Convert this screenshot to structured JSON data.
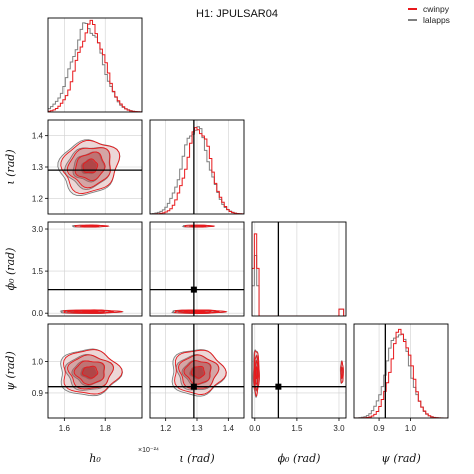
{
  "chart_data": {
    "type": "corner",
    "title": "H1: JPULSAR04",
    "series": [
      {
        "name": "cwinpy",
        "color": "#e8191c"
      },
      {
        "name": "lalapps",
        "color": "#7f7f7f"
      }
    ],
    "parameters": [
      {
        "key": "h0",
        "label": "h₀",
        "range": [
          1.52,
          1.98
        ],
        "ticks": [
          "1.6",
          "1.8"
        ],
        "exponent": "×10⁻²⁴",
        "truth": null,
        "mean": 1.72,
        "sd": 0.07
      },
      {
        "key": "iota",
        "label": "ι (rad)",
        "range": [
          1.15,
          1.45
        ],
        "ticks": [
          "1.2",
          "1.3",
          "1.4"
        ],
        "truth": 1.29,
        "mean": 1.3,
        "sd": 0.04
      },
      {
        "key": "phi0",
        "label": "ϕ₀ (rad)",
        "range": [
          -0.1,
          3.25
        ],
        "ticks": [
          "0.0",
          "1.5",
          "3.0"
        ],
        "truth": 0.84,
        "modes": [
          0.05,
          3.1
        ]
      },
      {
        "key": "psi",
        "label": "ψ (rad)",
        "range": [
          0.82,
          1.12
        ],
        "ticks": [
          "0.9",
          "1.0"
        ],
        "truth": 0.92,
        "mean": 0.965,
        "sd": 0.035
      }
    ]
  }
}
